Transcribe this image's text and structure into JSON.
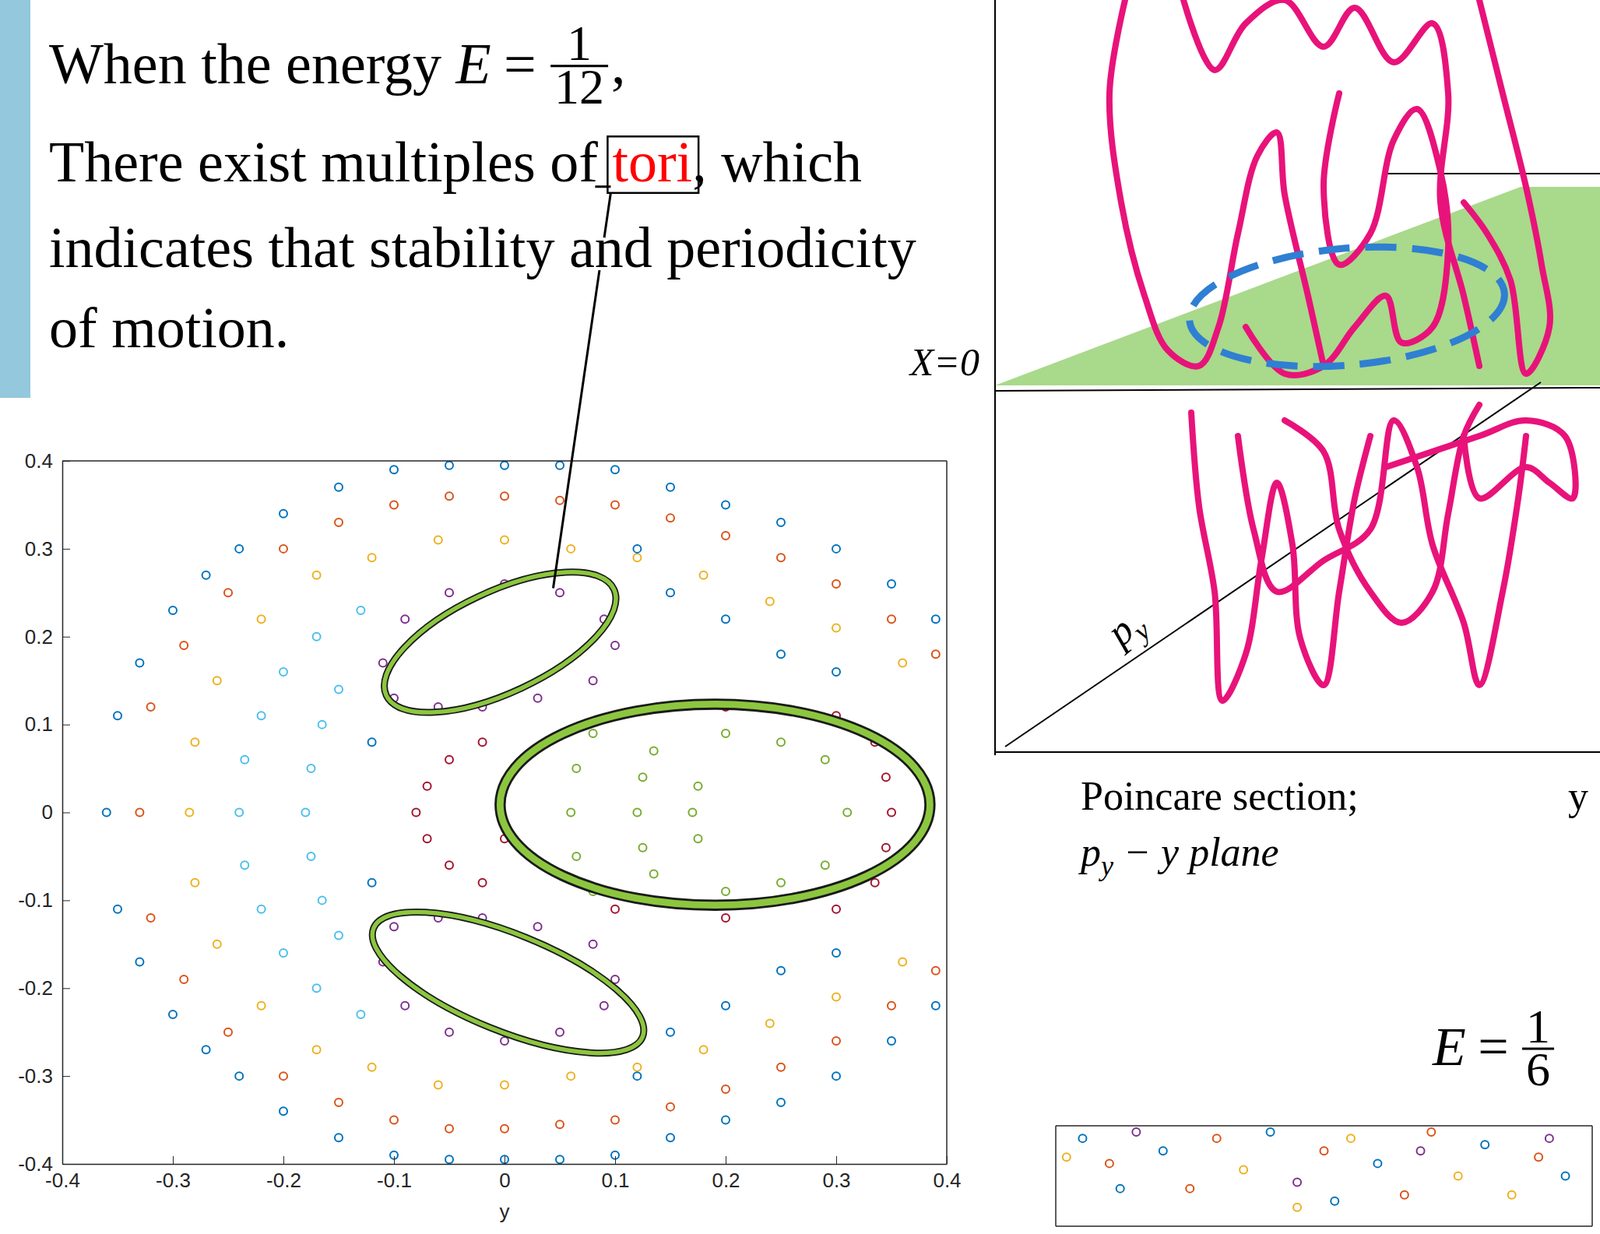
{
  "slide": {
    "line1": {
      "text": "When the energy ",
      "energy": {
        "variable": "E",
        "equals": "=",
        "numerator": "1",
        "denominator": "12"
      },
      "trailing": ","
    },
    "line2": {
      "before": "There exist multiples of ",
      "highlight": "tori",
      "after": ", which"
    },
    "line3": "indicates that stability and periodicity",
    "line4": "of motion.",
    "plane_label": "X=0",
    "axis_label": {
      "variable": "p",
      "subscript": "y"
    },
    "axis_label_y": "y",
    "caption": {
      "line1": "Poincare section;",
      "line2": {
        "variable": "p",
        "subscript": "y",
        "rest": " − y plane"
      }
    },
    "energy2": {
      "variable": "E",
      "equals": "=",
      "numerator": "1",
      "denominator": "6"
    }
  },
  "chart_data": [
    {
      "type": "scatter",
      "xlabel": "y",
      "marker": "circle-open",
      "xlim": [
        -0.4,
        0.4
      ],
      "ylim": [
        -0.4,
        0.4
      ],
      "xticks": [
        -0.4,
        -0.3,
        -0.2,
        -0.1,
        0,
        0.1,
        0.2,
        0.3,
        0.4
      ],
      "yticks": [
        -0.4,
        -0.3,
        -0.2,
        -0.1,
        0,
        0.1,
        0.2,
        0.3,
        0.4
      ],
      "series": [
        {
          "color": "#0072BD",
          "x": [
            -0.35,
            -0.33,
            -0.3,
            -0.27,
            -0.24,
            -0.2,
            -0.15,
            -0.1,
            -0.05,
            0,
            0.05,
            0.1,
            0.15,
            0.2,
            0.25,
            0.3,
            0.35,
            0.39,
            -0.35,
            -0.33,
            -0.3,
            -0.27,
            -0.24,
            -0.2,
            -0.15,
            -0.1,
            -0.05,
            0,
            0.05,
            0.1,
            0.15,
            0.2,
            0.25,
            0.3,
            0.35,
            0.39,
            -0.36
          ],
          "values": [
            0.11,
            0.17,
            0.23,
            0.27,
            0.3,
            0.34,
            0.37,
            0.39,
            0.395,
            0.395,
            0.395,
            0.39,
            0.37,
            0.35,
            0.33,
            0.3,
            0.26,
            0.22,
            -0.11,
            -0.17,
            -0.23,
            -0.27,
            -0.3,
            -0.34,
            -0.37,
            -0.39,
            -0.395,
            -0.395,
            -0.395,
            -0.39,
            -0.37,
            -0.35,
            -0.33,
            -0.3,
            -0.26,
            -0.22,
            0
          ]
        },
        {
          "color": "#D95319",
          "x": [
            -0.32,
            -0.29,
            -0.25,
            -0.2,
            -0.15,
            -0.1,
            -0.05,
            0,
            0.05,
            0.1,
            0.15,
            0.2,
            0.25,
            0.3,
            0.35,
            0.39,
            -0.32,
            -0.29,
            -0.25,
            -0.2,
            -0.15,
            -0.1,
            -0.05,
            0,
            0.05,
            0.1,
            0.15,
            0.2,
            0.25,
            0.3,
            0.35,
            0.39,
            -0.33
          ],
          "values": [
            0.12,
            0.19,
            0.25,
            0.3,
            0.33,
            0.35,
            0.36,
            0.36,
            0.355,
            0.35,
            0.335,
            0.315,
            0.29,
            0.26,
            0.22,
            0.18,
            -0.12,
            -0.19,
            -0.25,
            -0.3,
            -0.33,
            -0.35,
            -0.36,
            -0.36,
            -0.355,
            -0.35,
            -0.335,
            -0.315,
            -0.29,
            -0.26,
            -0.22,
            -0.18,
            0
          ]
        },
        {
          "color": "#EDB120",
          "x": [
            -0.28,
            -0.26,
            -0.22,
            -0.17,
            -0.12,
            -0.06,
            0,
            0.06,
            0.12,
            0.18,
            0.24,
            0.3,
            0.36,
            -0.28,
            -0.26,
            -0.22,
            -0.17,
            -0.12,
            -0.06,
            0,
            0.06,
            0.12,
            0.18,
            0.24,
            0.3,
            0.36,
            -0.285
          ],
          "values": [
            0.08,
            0.15,
            0.22,
            0.27,
            0.29,
            0.31,
            0.31,
            0.3,
            0.29,
            0.27,
            0.24,
            0.21,
            0.17,
            -0.08,
            -0.15,
            -0.22,
            -0.27,
            -0.29,
            -0.31,
            -0.31,
            -0.3,
            -0.29,
            -0.27,
            -0.24,
            -0.21,
            -0.17,
            0
          ]
        },
        {
          "color": "#4DBEEE",
          "x": [
            -0.24,
            -0.235,
            -0.22,
            -0.2,
            -0.17,
            -0.13,
            -0.235,
            -0.22,
            -0.2,
            -0.17,
            -0.13,
            -0.18,
            -0.175,
            -0.165,
            -0.175,
            -0.165,
            -0.15,
            -0.15
          ],
          "values": [
            0,
            0.06,
            0.11,
            0.16,
            0.2,
            0.23,
            -0.06,
            -0.11,
            -0.16,
            -0.2,
            -0.23,
            0,
            0.05,
            0.1,
            -0.05,
            -0.1,
            0.14,
            -0.14
          ]
        },
        {
          "color": "#7E2F8E",
          "x": [
            -0.1,
            -0.06,
            -0.02,
            0.03,
            0.08,
            0.1,
            0.09,
            0.05,
            0,
            -0.05,
            -0.09,
            -0.11,
            -0.1,
            -0.06,
            -0.02,
            0.03,
            0.08,
            0.1,
            0.09,
            0.05,
            0,
            -0.05,
            -0.09,
            -0.11
          ],
          "values": [
            0.13,
            0.12,
            0.12,
            0.13,
            0.15,
            0.19,
            0.22,
            0.25,
            0.26,
            0.25,
            0.22,
            0.17,
            -0.13,
            -0.12,
            -0.12,
            -0.13,
            -0.15,
            -0.19,
            -0.22,
            -0.25,
            -0.26,
            -0.25,
            -0.22,
            -0.17
          ]
        },
        {
          "color": "#77AC30",
          "x": [
            0.06,
            0.065,
            0.08,
            0.065,
            0.08,
            0.12,
            0.125,
            0.135,
            0.125,
            0.135,
            0.17,
            0.175,
            0.175,
            0.25,
            0.29,
            0.31,
            0.29,
            0.25,
            0.2,
            0.2
          ],
          "values": [
            0,
            0.05,
            0.09,
            -0.05,
            -0.09,
            0,
            0.04,
            0.07,
            -0.04,
            -0.07,
            0,
            0.03,
            -0.03,
            0.08,
            0.06,
            0,
            -0.06,
            -0.08,
            0.09,
            -0.09
          ]
        },
        {
          "color": "#A2142F",
          "x": [
            -0.08,
            -0.07,
            -0.05,
            -0.07,
            -0.05,
            -0.02,
            -0.02,
            0.35,
            0.345,
            0.335,
            0.345,
            0.335,
            0.3,
            0.3,
            0.2,
            0.1,
            0.2,
            0.1,
            0,
            0
          ],
          "values": [
            0,
            0.03,
            0.06,
            -0.03,
            -0.06,
            0.08,
            -0.08,
            0,
            0.04,
            0.08,
            -0.04,
            -0.08,
            0.11,
            -0.11,
            0.12,
            0.11,
            -0.12,
            -0.11,
            0.03,
            -0.03
          ]
        },
        {
          "color": "#0072BD",
          "x": [
            0.15,
            0.2,
            0.25,
            0.3,
            0.15,
            0.2,
            0.25,
            0.3,
            0.12,
            0.12,
            -0.12,
            -0.12
          ],
          "values": [
            0.25,
            0.22,
            0.18,
            0.16,
            -0.25,
            -0.22,
            -0.18,
            -0.16,
            0.3,
            -0.3,
            0.08,
            -0.08
          ]
        }
      ]
    },
    {
      "type": "scatter",
      "marker": "circle-open",
      "tick_labels": false,
      "xlim": [
        -0.5,
        0.5
      ],
      "ylim": [
        0.52,
        0.6
      ],
      "series": [
        {
          "color": "#0072BD",
          "x": [
            -0.45,
            -0.3,
            -0.1,
            0.1,
            0.3,
            0.45,
            -0.38,
            0.02
          ],
          "values": [
            0.59,
            0.58,
            0.595,
            0.57,
            0.585,
            0.56,
            0.55,
            0.54
          ]
        },
        {
          "color": "#D95319",
          "x": [
            -0.4,
            -0.2,
            0,
            0.2,
            0.4,
            -0.25,
            0.15
          ],
          "values": [
            0.57,
            0.59,
            0.58,
            0.595,
            0.575,
            0.55,
            0.545
          ]
        },
        {
          "color": "#EDB120",
          "x": [
            -0.48,
            -0.15,
            0.05,
            0.25,
            0.35,
            -0.05
          ],
          "values": [
            0.575,
            0.565,
            0.59,
            0.56,
            0.545,
            0.535
          ]
        },
        {
          "color": "#7E2F8E",
          "x": [
            -0.35,
            -0.05,
            0.18,
            0.42
          ],
          "values": [
            0.595,
            0.555,
            0.58,
            0.59
          ]
        }
      ]
    }
  ]
}
